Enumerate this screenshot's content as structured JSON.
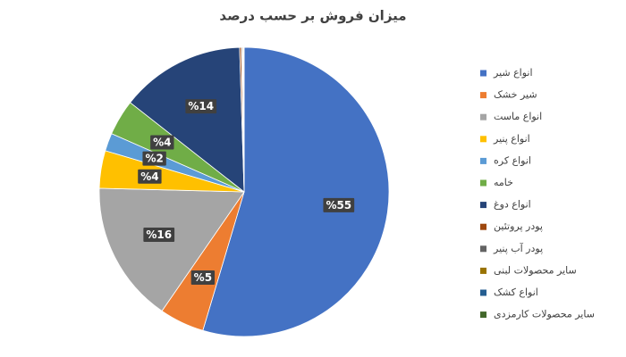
{
  "chart_data": {
    "type": "pie",
    "title": "میزان فروش بر حسب درصد",
    "categories": [
      "انواع شیر",
      "شیر خشک",
      "انواع ماست",
      "انواع پنیر",
      "انواع کره",
      "خامه",
      "انواع دوغ",
      "پودر پروتئین",
      "پودر آب پنیر",
      "سایر محصولات لبنی",
      "انواع کشک",
      "سایر محصولات کارمزدی"
    ],
    "values": [
      54.6,
      5,
      15.8,
      4.2,
      2,
      4,
      13.9,
      0.2,
      0.1,
      0.1,
      0.05,
      0.05
    ],
    "value_labels": [
      "%55",
      "%5",
      "%16",
      "%4",
      "%2",
      "%4",
      "%14",
      null,
      null,
      null,
      null,
      null
    ],
    "colors": [
      "#4472c4",
      "#ed7d31",
      "#a5a5a5",
      "#ffc000",
      "#5b9bd5",
      "#70ad47",
      "#264478",
      "#9e480e",
      "#636363",
      "#997300",
      "#255e91",
      "#43682b"
    ],
    "legend": "right"
  }
}
